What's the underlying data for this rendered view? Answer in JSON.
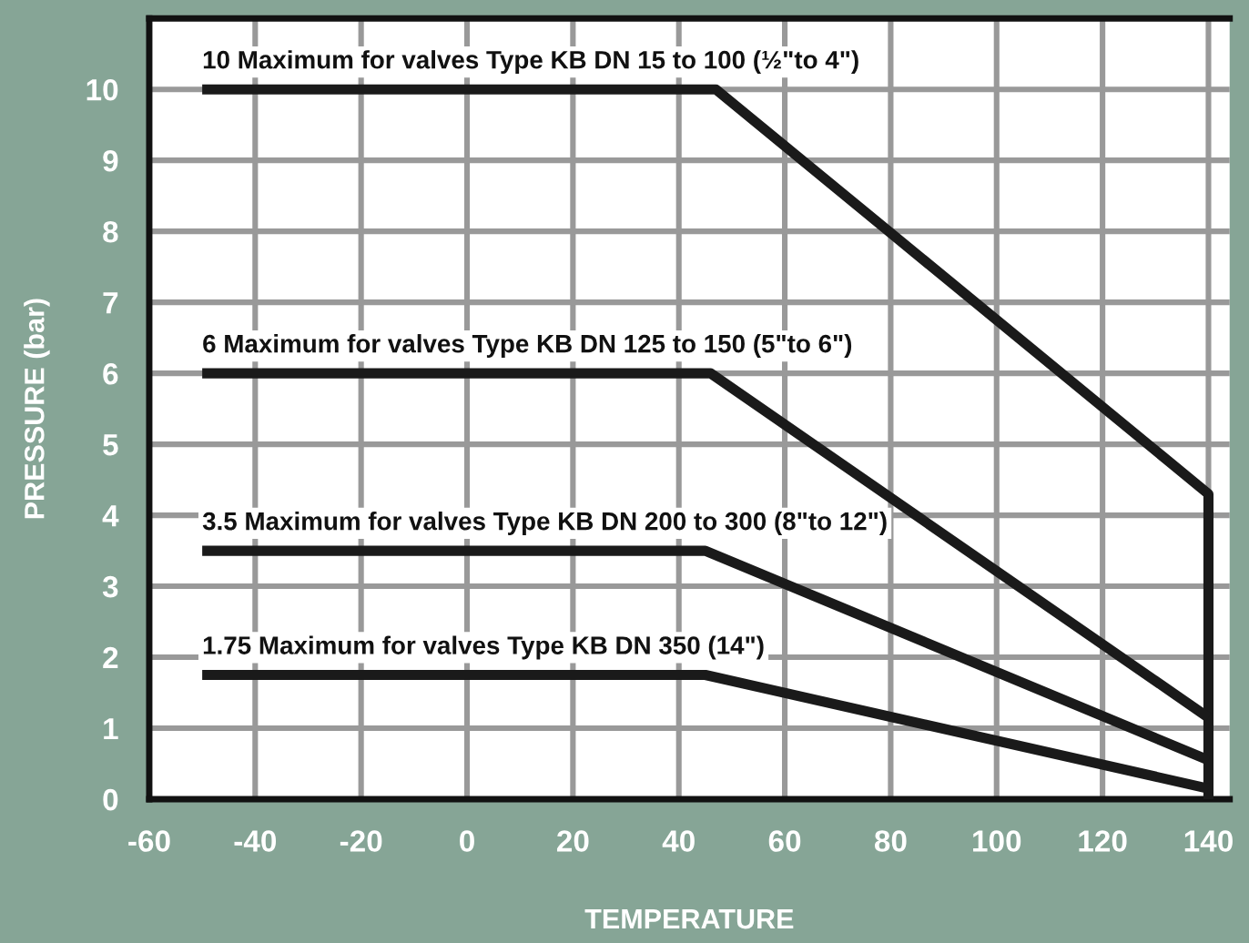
{
  "chart_data": {
    "type": "line",
    "xlabel": "TEMPERATURE",
    "ylabel": "PRESSURE (bar)",
    "xlim": [
      -60,
      144
    ],
    "ylim": [
      0,
      11
    ],
    "xticks": [
      -60,
      -40,
      -20,
      0,
      20,
      40,
      60,
      80,
      100,
      120,
      140
    ],
    "yticks": [
      0,
      1,
      2,
      3,
      4,
      5,
      6,
      7,
      8,
      9,
      10
    ],
    "grid": true,
    "legend": false,
    "marker": "none",
    "line_style": "solid",
    "series": [
      {
        "color": "#1a1a1a",
        "x": [
          -50,
          47,
          140,
          140
        ],
        "values": [
          10,
          10,
          4.3,
          0
        ]
      },
      {
        "color": "#1a1a1a",
        "x": [
          -50,
          46,
          140
        ],
        "values": [
          6,
          6,
          1.15
        ]
      },
      {
        "color": "#1a1a1a",
        "x": [
          -50,
          45,
          140
        ],
        "values": [
          3.5,
          3.5,
          0.55
        ]
      },
      {
        "color": "#1a1a1a",
        "x": [
          -50,
          45,
          140
        ],
        "values": [
          1.75,
          1.75,
          0.15
        ]
      }
    ],
    "annotations": [
      "10 Maximum for valves Type KB DN 15 to 100 (½\"to 4\")",
      "6 Maximum for valves Type KB DN 125 to 150 (5\"to 6\")",
      "3.5 Maximum for valves Type KB DN 200 to 300 (8\"to 12\")",
      "1.75 Maximum for valves Type KB DN 350 (14\")"
    ]
  }
}
